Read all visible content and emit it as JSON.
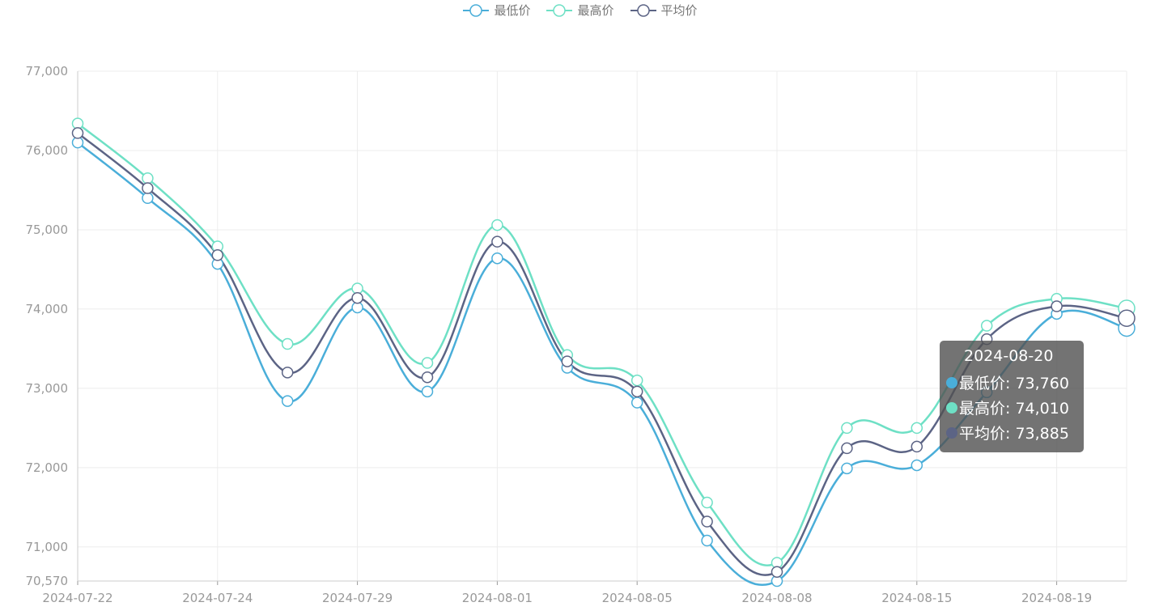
{
  "legend": [
    {
      "label": "最低价",
      "color": "#4aaed9"
    },
    {
      "label": "最高价",
      "color": "#6ee0c5"
    },
    {
      "label": "平均价",
      "color": "#5c6485"
    }
  ],
  "tooltip": {
    "title": "2024-08-20",
    "rows": [
      {
        "text": "最低价: 73,760",
        "color": "#4aaed9"
      },
      {
        "text": "最高价: 74,010",
        "color": "#6ee0c5"
      },
      {
        "text": "平均价: 73,885",
        "color": "#5c6485"
      }
    ]
  },
  "chart_data": {
    "type": "line",
    "x": [
      "2024-07-22",
      "2024-07-23",
      "2024-07-24",
      "2024-07-26",
      "2024-07-29",
      "2024-07-31",
      "2024-08-01",
      "2024-08-02",
      "2024-08-05",
      "2024-08-07",
      "2024-08-08",
      "2024-08-13",
      "2024-08-15",
      "2024-08-16",
      "2024-08-19",
      "2024-08-20"
    ],
    "x_tick_labels": [
      "2024-07-22",
      "2024-07-24",
      "2024-07-29",
      "2024-08-01",
      "2024-08-05",
      "2024-08-08",
      "2024-08-15",
      "2024-08-19"
    ],
    "y_ticks": [
      70570,
      71000,
      72000,
      73000,
      74000,
      75000,
      76000,
      77000
    ],
    "y_tick_labels": [
      "70,570",
      "71,000",
      "72,000",
      "73,000",
      "74,000",
      "75,000",
      "76,000",
      "77,000"
    ],
    "ylim": [
      70570,
      77000
    ],
    "grid": true,
    "legend_position": "top-center",
    "series": [
      {
        "name": "最低价",
        "color": "#4aaed9",
        "values": [
          76100,
          75400,
          74570,
          72840,
          74020,
          72960,
          74640,
          73260,
          72820,
          71080,
          70570,
          71990,
          72030,
          72950,
          73940,
          73760
        ]
      },
      {
        "name": "最高价",
        "color": "#6ee0c5",
        "values": [
          76340,
          75650,
          74790,
          73560,
          74260,
          73320,
          75060,
          73420,
          73100,
          71560,
          70800,
          72500,
          72500,
          73790,
          74130,
          74010
        ]
      },
      {
        "name": "平均价",
        "color": "#5c6485",
        "values": [
          76220,
          75525,
          74680,
          73200,
          74140,
          73140,
          74850,
          73340,
          72960,
          71320,
          70685,
          72245,
          72265,
          73620,
          74035,
          73885
        ]
      }
    ],
    "highlighted_category": "2024-08-20"
  }
}
